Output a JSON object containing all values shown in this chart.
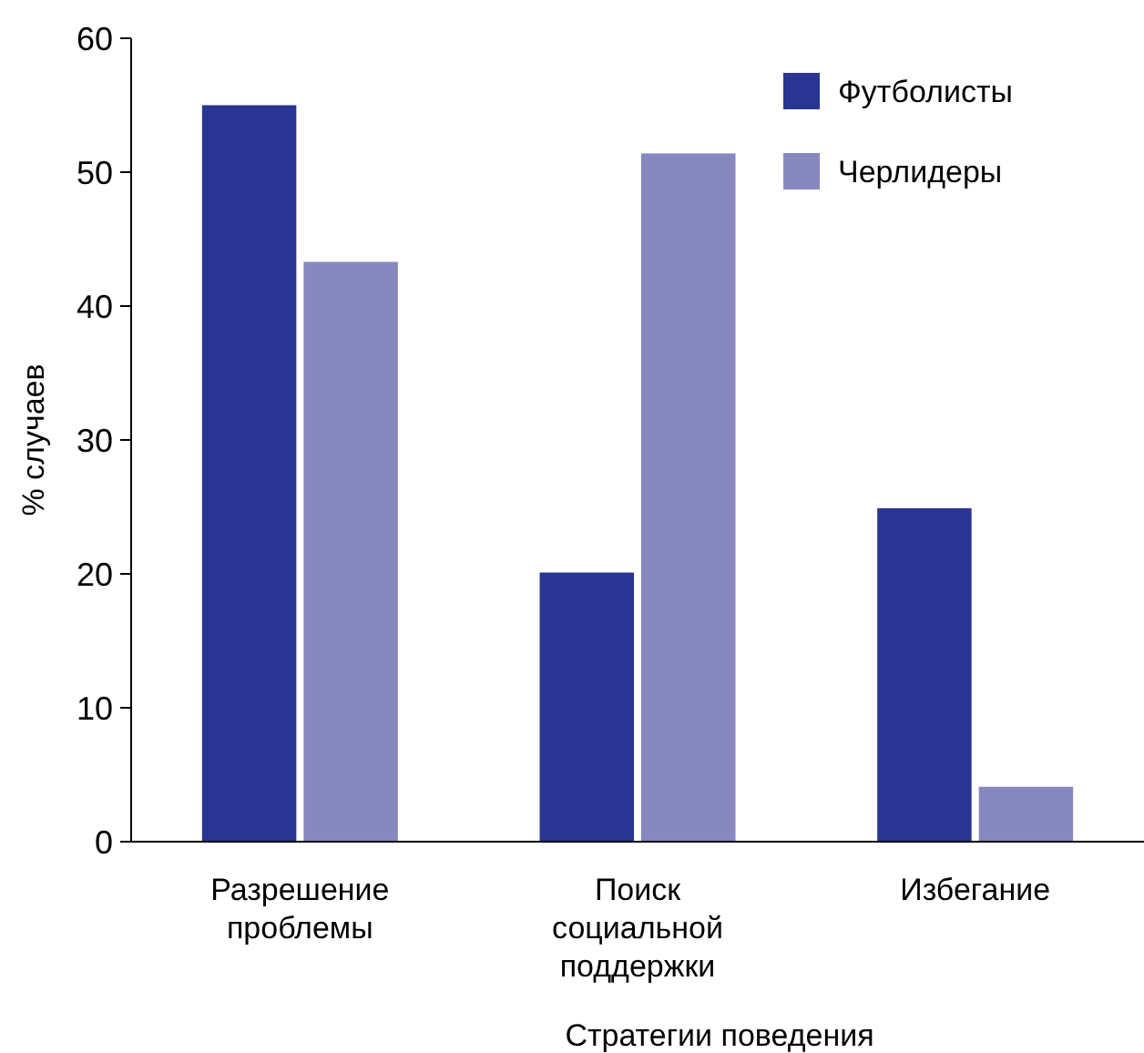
{
  "chart_data": {
    "type": "bar",
    "xlabel": "Стратегии поведения",
    "ylabel": "% случаев",
    "categories": [
      "Разрешение проблемы",
      "Поиск социальной поддержки",
      "Избегание"
    ],
    "series": [
      {
        "name": "Футболисты",
        "color": "#283593",
        "values": [
          55,
          20.1,
          24.9
        ]
      },
      {
        "name": "Черлидеры",
        "color": "#8888c0",
        "values": [
          43.3,
          51.4,
          4.1
        ]
      }
    ],
    "ylim": [
      0,
      60
    ],
    "yticks": [
      0,
      10,
      20,
      30,
      40,
      50,
      60
    ],
    "grid": false,
    "legend": "top right"
  }
}
